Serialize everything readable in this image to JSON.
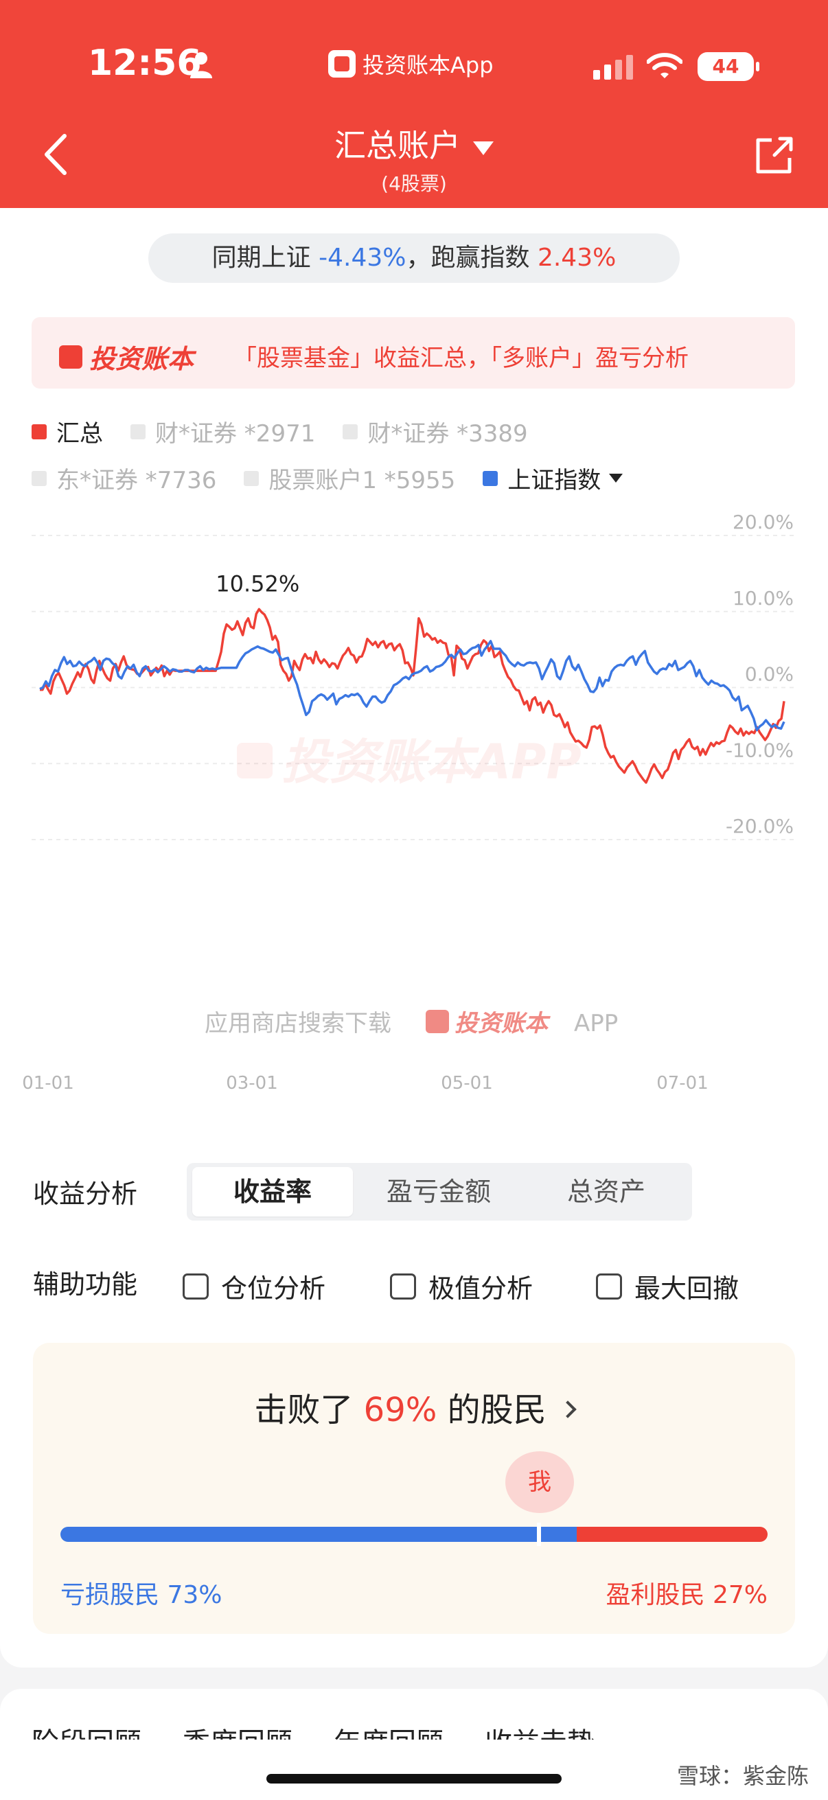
{
  "status_bar": {
    "time": "12:56",
    "app_name": "投资账本App",
    "battery": "44"
  },
  "nav": {
    "title": "汇总账户",
    "subtitle": "(4股票)"
  },
  "compare": {
    "prefix": "同期上证",
    "index_return": "-4.43%",
    "mid": "，跑赢指数",
    "excess": "2.43%"
  },
  "promo": {
    "brand": "投资账本",
    "text": "「股票基金」收益汇总，「多账户」盈亏分析"
  },
  "legend": [
    {
      "label": "汇总",
      "active": true,
      "color": "#ee4036"
    },
    {
      "label": "财*证券 *2971",
      "active": false
    },
    {
      "label": "财*证券 *3389",
      "active": false
    },
    {
      "label": "东*证券 *7736",
      "active": false
    },
    {
      "label": "股票账户1 *5955",
      "active": false
    },
    {
      "label": "上证指数",
      "active": true,
      "color": "#3b77e2"
    }
  ],
  "chart_data": {
    "type": "line",
    "y_ticks": [
      "20.0%",
      "10.0%",
      "0.0%",
      "-10.0%",
      "-20.0%"
    ],
    "ylim": [
      -20,
      20
    ],
    "x_ticks": [
      "01-01",
      "03-01",
      "05-01",
      "07-01"
    ],
    "peak_label": "10.52%",
    "watermark": "投资账本APP",
    "download_text": "应用商店搜索下载",
    "download_brand": "投资账本",
    "download_suffix": "APP",
    "series": [
      {
        "name": "汇总",
        "color": "#ee4036",
        "values": [
          -0.3,
          -0.3,
          0.5,
          -0.2,
          -0.8,
          0.8,
          1.6,
          1.9,
          1.1,
          0.3,
          -0.8,
          -0.4,
          0.5,
          1.2,
          2.0,
          1.4,
          2.5,
          3.1,
          2.4,
          1.1,
          0.6,
          2.3,
          3.5,
          2.6,
          1.8,
          1.2,
          0.9,
          2.5,
          3.1,
          2.2,
          3.3,
          4.1,
          3.0,
          2.5,
          2.4,
          2.3,
          1.8,
          1.7,
          2.1,
          2.5,
          2.7,
          1.6,
          2.1,
          2.6,
          2.2,
          2.9,
          1.5,
          2.2,
          1.7,
          2.3,
          2.2,
          2.2,
          2.2,
          2.2,
          2.2,
          2.2,
          2.2,
          2.2,
          2.2,
          2.2,
          2.2,
          2.2,
          2.2,
          2.2,
          2.2,
          2.2,
          3.4,
          4.7,
          7.1,
          8.3,
          8.0,
          7.6,
          7.8,
          8.7,
          7.8,
          6.9,
          8.5,
          9.1,
          8.0,
          7.8,
          9.7,
          10.3,
          9.9,
          9.6,
          8.9,
          7.9,
          6.3,
          6.8,
          6.0,
          3.0,
          2.2,
          1.8,
          0.9,
          1.5,
          3.5,
          2.8,
          2.3,
          3.7,
          4.4,
          3.8,
          3.9,
          3.2,
          4.7,
          3.7,
          3.2,
          3.7,
          3.3,
          2.7,
          3.2,
          3.1,
          2.5,
          3.4,
          4.2,
          4.6,
          5.2,
          4.4,
          4.2,
          3.3,
          4.0,
          4.1,
          5.0,
          6.4,
          6.0,
          5.6,
          6.0,
          5.3,
          5.9,
          6.1,
          5.2,
          5.7,
          5.8,
          4.9,
          5.4,
          5.7,
          4.9,
          3.2,
          3.3,
          2.6,
          1.6,
          5.1,
          9.1,
          8.3,
          6.7,
          7.1,
          6.8,
          6.3,
          6.5,
          5.9,
          6.2,
          5.9,
          5.8,
          4.3,
          4.1,
          1.6,
          5.5,
          5.1,
          3.8,
          3.6,
          2.5,
          3.3,
          4.1,
          4.4,
          4.5,
          5.6,
          6.2,
          5.9,
          4.8,
          5.5,
          4.0,
          4.3,
          4.7,
          3.1,
          2.2,
          1.4,
          1.0,
          0.2,
          -0.3,
          -0.4,
          -1.3,
          -2.2,
          -1.8,
          -3.0,
          -1.6,
          -1.3,
          -2.3,
          -2.0,
          -3.3,
          -2.4,
          -1.8,
          -2.3,
          -3.6,
          -3.8,
          -3.5,
          -4.3,
          -5.2,
          -4.6,
          -5.9,
          -6.5,
          -7.1,
          -7.0,
          -7.3,
          -7.7,
          -7.9,
          -6.9,
          -5.2,
          -5.1,
          -5.4,
          -5.0,
          -6.2,
          -7.8,
          -8.6,
          -9.2,
          -9.0,
          -9.8,
          -10.4,
          -10.8,
          -11.2,
          -10.5,
          -10.1,
          -9.7,
          -10.3,
          -11.1,
          -11.6,
          -12.1,
          -12.5,
          -11.7,
          -10.7,
          -10.1,
          -10.8,
          -11.3,
          -11.9,
          -11.1,
          -10.8,
          -9.8,
          -8.6,
          -8.2,
          -9.4,
          -8.2,
          -7.8,
          -7.2,
          -6.8,
          -7.8,
          -8.1,
          -7.8,
          -8.9,
          -8.1,
          -8.8,
          -8.0,
          -7.3,
          -7.7,
          -7.2,
          -7.4,
          -7.1,
          -7.0,
          -5.9,
          -5.0,
          -5.3,
          -5.8,
          -6.1,
          -5.4,
          -6.3,
          -5.8,
          -6.1,
          -5.8,
          -6.0,
          -5.2,
          -5.9,
          -6.4,
          -6.9,
          -6.4,
          -5.6,
          -4.8,
          -5.3,
          -4.4,
          -4.1,
          -1.8
        ]
      },
      {
        "name": "上证指数",
        "color": "#3b77e2",
        "values": [
          -0.2,
          0.0,
          0.8,
          0.2,
          1.5,
          2.3,
          2.1,
          3.2,
          4.0,
          3.1,
          3.5,
          2.8,
          2.9,
          3.4,
          3.0,
          2.8,
          3.3,
          3.5,
          3.9,
          3.3,
          2.3,
          3.5,
          3.8,
          3.7,
          3.2,
          2.9,
          1.5,
          1.2,
          2.1,
          2.8,
          2.5,
          3.0,
          2.0,
          1.5,
          2.5,
          2.8,
          2.2,
          2.1,
          2.4,
          2.0,
          2.4,
          2.8,
          2.5,
          2.1,
          2.4,
          2.3,
          2.1,
          2.1,
          2.3,
          2.3,
          2.1,
          2.0,
          2.5,
          2.8,
          2.3,
          2.6,
          2.4,
          2.5,
          2.4,
          2.5,
          2.6,
          2.6,
          2.6,
          2.6,
          2.6,
          2.6,
          3.4,
          4.0,
          4.5,
          4.7,
          5.0,
          5.2,
          5.4,
          5.2,
          5.1,
          4.9,
          4.7,
          4.6,
          5.0,
          4.3,
          3.6,
          3.8,
          3.9,
          2.6,
          1.4,
          0.4,
          -1.1,
          -2.3,
          -3.6,
          -3.2,
          -1.8,
          -1.5,
          -1.1,
          -0.9,
          -1.1,
          -1.6,
          -1.2,
          -0.8,
          -2.2,
          -1.5,
          -1.3,
          -1.0,
          -1.2,
          -0.9,
          -1.0,
          -0.8,
          -1.2,
          -2.0,
          -2.5,
          -1.8,
          -1.2,
          -1.2,
          -1.7,
          -2.0,
          -1.8,
          -1.0,
          -0.5,
          0.3,
          0.5,
          0.8,
          1.2,
          1.4,
          1.1,
          1.7,
          1.9,
          2.0,
          2.2,
          2.6,
          2.8,
          2.1,
          2.3,
          2.7,
          2.8,
          3.0,
          3.4,
          4.0,
          4.3,
          3.9,
          4.5,
          5.0,
          4.4,
          4.5,
          4.9,
          5.2,
          5.3,
          5.6,
          4.2,
          5.0,
          5.5,
          6.1,
          5.1,
          5.1,
          5.1,
          4.6,
          4.2,
          3.5,
          3.1,
          2.8,
          3.3,
          3.0,
          2.9,
          3.2,
          3.3,
          3.2,
          3.3,
          2.5,
          1.1,
          2.0,
          2.8,
          3.7,
          3.2,
          1.5,
          1.1,
          2.2,
          3.5,
          4.1,
          2.8,
          2.3,
          3.0,
          2.1,
          1.1,
          0.4,
          -0.5,
          -0.6,
          -0.1,
          1.3,
          0.2,
          1.0,
          0.9,
          2.1,
          2.6,
          2.9,
          3.0,
          2.9,
          3.5,
          3.9,
          4.1,
          3.0,
          3.9,
          4.4,
          4.8,
          3.3,
          2.7,
          2.1,
          1.8,
          2.3,
          2.5,
          2.4,
          3.1,
          2.8,
          3.5,
          2.3,
          2.5,
          2.7,
          3.2,
          3.5,
          2.8,
          1.5,
          2.3,
          1.3,
          0.8,
          0.4,
          0.9,
          0.6,
          0.5,
          0.2,
          0.3,
          0.0,
          -0.4,
          -1.3,
          -1.7,
          -1.2,
          -3.0,
          -2.7,
          -2.4,
          -3.2,
          -4.1,
          -5.6,
          -5.1,
          -4.8,
          -4.3,
          -4.8,
          -5.2,
          -4.9,
          -5.3,
          -5.4,
          -4.5
        ]
      }
    ]
  },
  "analysis": {
    "label": "收益分析",
    "options": [
      "收益率",
      "盈亏金额",
      "总资产"
    ],
    "selected": "收益率"
  },
  "aux": {
    "label": "辅助功能",
    "options": [
      "仓位分析",
      "极值分析",
      "最大回撤"
    ]
  },
  "beat": {
    "prefix": "击败了",
    "percent": "69%",
    "suffix": "的股民",
    "me": "我",
    "loss_label": "亏损股民 73%",
    "profit_label": "盈利股民 27%",
    "loss_fraction": 0.73
  },
  "next_section": {
    "tabs": [
      "阶段回顾",
      "季度回顾",
      "年度回顾",
      "收益走势"
    ]
  },
  "watermark_corner": "雪球：紫金陈"
}
